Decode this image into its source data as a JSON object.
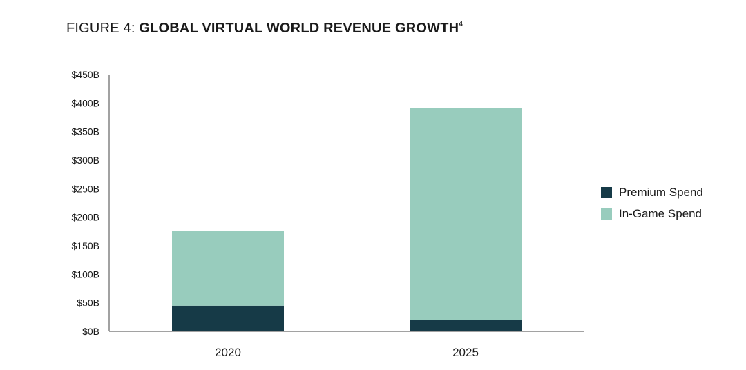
{
  "figure": {
    "prefix": "FIGURE 4: ",
    "title": "GLOBAL VIRTUAL WORLD REVENUE GROWTH",
    "footnote": "4"
  },
  "chart_data": {
    "type": "bar",
    "stacked": true,
    "title": "GLOBAL VIRTUAL WORLD REVENUE GROWTH",
    "xlabel": "",
    "ylabel": "",
    "ylim": [
      0,
      450
    ],
    "yticks": [
      0,
      50,
      100,
      150,
      200,
      250,
      300,
      350,
      400,
      450
    ],
    "ytick_labels": [
      "$0B",
      "$50B",
      "$100B",
      "$150B",
      "$200B",
      "$250B",
      "$300B",
      "$350B",
      "$400B",
      "$450B"
    ],
    "categories": [
      "2020",
      "2025"
    ],
    "series": [
      {
        "name": "Premium Spend",
        "color": "#163a47",
        "values": [
          45,
          20
        ]
      },
      {
        "name": "In-Game Spend",
        "color": "#98ccbd",
        "values": [
          131,
          371
        ]
      }
    ],
    "legend_position": "right"
  }
}
